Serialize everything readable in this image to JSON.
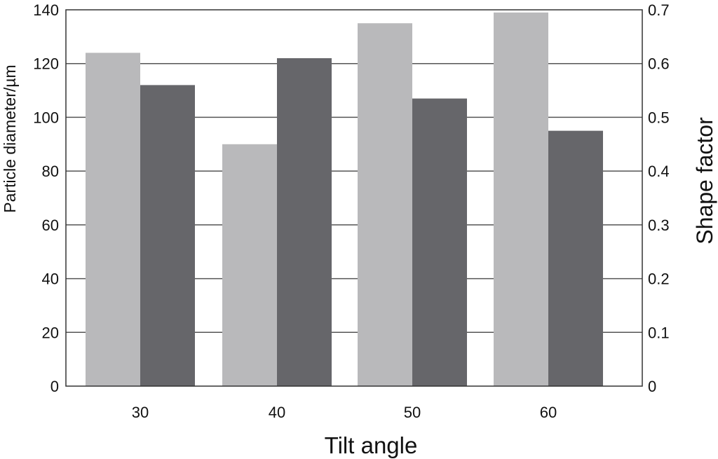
{
  "chart_data": {
    "type": "bar",
    "categories": [
      "30",
      "40",
      "50",
      "60"
    ],
    "series": [
      {
        "axis": "left",
        "color": "#b9b9bb",
        "values": [
          124,
          90,
          135,
          139
        ]
      },
      {
        "axis": "right",
        "color": "#66666a",
        "values": [
          0.56,
          0.61,
          0.535,
          0.475
        ]
      }
    ],
    "xlabel": "Tilt angle",
    "ylabel_left": "Particle diameter/µm",
    "ylabel_right": "Shape factor",
    "ylim_left": [
      0,
      140
    ],
    "yticks_left": [
      "0",
      "20",
      "40",
      "60",
      "80",
      "100",
      "120",
      "140"
    ],
    "ylim_right": [
      0,
      0.7
    ],
    "yticks_right": [
      "0",
      "0.1",
      "0.2",
      "0.3",
      "0.4",
      "0.5",
      "0.6",
      "0.7"
    ],
    "grid": true,
    "legend": "none",
    "colors": {
      "gridline": "#555555",
      "frame": "#333333"
    }
  }
}
